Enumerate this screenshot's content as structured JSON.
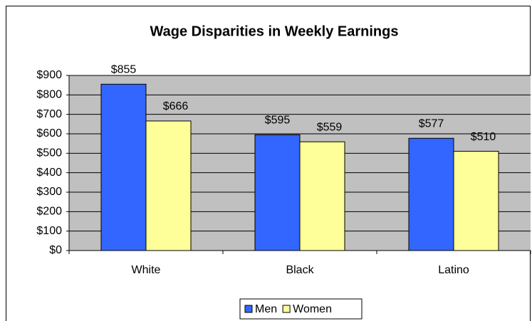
{
  "chart_data": {
    "type": "bar",
    "title": "Wage Disparities in Weekly Earnings",
    "categories": [
      "White",
      "Black",
      "Latino"
    ],
    "series": [
      {
        "name": "Men",
        "color": "#3366ff",
        "values": [
          855,
          595,
          577
        ],
        "value_labels": [
          "$855",
          "$595",
          "$577"
        ]
      },
      {
        "name": "Women",
        "color": "#ffff99",
        "values": [
          666,
          559,
          510
        ],
        "value_labels": [
          "$666",
          "$559",
          "$510"
        ]
      }
    ],
    "ylim": [
      0,
      900
    ],
    "yticks": [
      {
        "value": 0,
        "label": "$0"
      },
      {
        "value": 100,
        "label": "$100"
      },
      {
        "value": 200,
        "label": "$200"
      },
      {
        "value": 300,
        "label": "$300"
      },
      {
        "value": 400,
        "label": "$400"
      },
      {
        "value": 500,
        "label": "$500"
      },
      {
        "value": 600,
        "label": "$600"
      },
      {
        "value": 700,
        "label": "$700"
      },
      {
        "value": 800,
        "label": "$800"
      },
      {
        "value": 900,
        "label": "$900"
      }
    ],
    "grid": true,
    "legend": "bottom"
  }
}
